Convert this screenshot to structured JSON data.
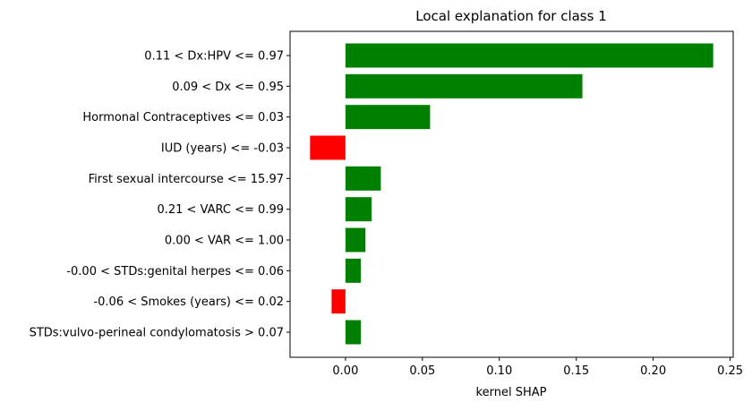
{
  "chart_data": {
    "type": "bar",
    "orientation": "horizontal",
    "title": "Local explanation for class 1",
    "xlabel": "kernel SHAP",
    "ylabel": "",
    "xlim": [
      -0.036,
      0.252
    ],
    "xticks": [
      0.0,
      0.05,
      0.1,
      0.15,
      0.2,
      0.25
    ],
    "xtick_labels": [
      "0.00",
      "0.05",
      "0.10",
      "0.15",
      "0.20",
      "0.25"
    ],
    "grid": false,
    "legend": "none",
    "positive_color": "#008000",
    "negative_color": "#ff0000",
    "categories": [
      "0.11 < Dx:HPV <= 0.97",
      "0.09 < Dx <= 0.95",
      "Hormonal Contraceptives <= 0.03",
      "IUD (years) <= -0.03",
      "First sexual intercourse <= 15.97",
      "0.21 < VARC <= 0.99",
      "0.00 < VAR <= 1.00",
      "-0.00 < STDs:genital herpes <= 0.06",
      "-0.06 < Smokes (years) <= 0.02",
      "STDs:vulvo-perineal condylomatosis > 0.07"
    ],
    "values": [
      0.239,
      0.154,
      0.055,
      -0.023,
      0.023,
      0.017,
      0.013,
      0.01,
      -0.009,
      0.01
    ]
  }
}
